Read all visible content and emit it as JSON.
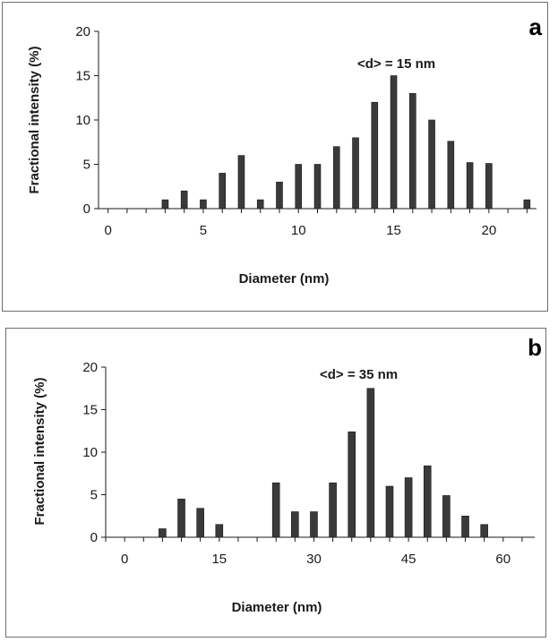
{
  "colors": {
    "bar": "#3a3a3a",
    "axis": "#1a1a1a",
    "frame": "#6e6e6e"
  },
  "chart_data": [
    {
      "type": "bar",
      "panel_label": "a",
      "annotation": "<d> = 15 nm",
      "xlabel": "Diameter (nm)",
      "ylabel": "Fractional intensity (%)",
      "xlim": [
        -0.5,
        22.5
      ],
      "ylim": [
        0,
        20
      ],
      "xticks": [
        0,
        5,
        10,
        15,
        20
      ],
      "yticks": [
        0,
        5,
        10,
        15,
        20
      ],
      "grid": false,
      "x": [
        3,
        4,
        5,
        6,
        7,
        8,
        9,
        10,
        11,
        12,
        13,
        14,
        15,
        16,
        17,
        18,
        19,
        20,
        22
      ],
      "values": [
        1,
        2,
        1,
        4,
        6,
        1,
        3,
        5,
        5,
        7,
        8,
        12,
        15,
        13,
        10,
        7.6,
        5.2,
        5.1,
        1
      ]
    },
    {
      "type": "bar",
      "panel_label": "b",
      "annotation": "<d> = 35 nm",
      "xlabel": "Diameter (nm)",
      "ylabel": "Fractional intensity (%)",
      "xlim": [
        -3,
        65
      ],
      "ylim": [
        0,
        20
      ],
      "xticks": [
        0,
        15,
        30,
        45,
        60
      ],
      "yticks": [
        0,
        5,
        10,
        15,
        20
      ],
      "grid": false,
      "x": [
        6,
        9,
        12,
        15,
        24,
        27,
        30,
        33,
        36,
        39,
        42,
        45,
        48,
        51,
        54,
        57
      ],
      "values": [
        1,
        4.5,
        3.4,
        1.5,
        6.4,
        3,
        3,
        6.4,
        12.4,
        17.5,
        6,
        7,
        8.4,
        4.9,
        2.5,
        1.5
      ]
    }
  ]
}
